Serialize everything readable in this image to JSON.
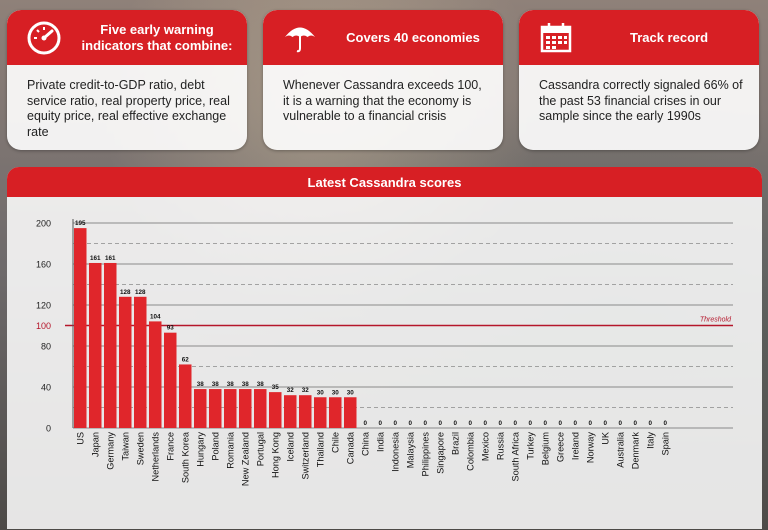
{
  "cards": [
    {
      "title": "Five early warning indicators that combine:",
      "icon": "gauge-icon",
      "body": "Private credit-to-GDP ratio, debt service ratio, real property price, real equity price, real effective exchange rate"
    },
    {
      "title": "Covers 40 economies",
      "icon": "umbrella-icon",
      "body": "Whenever Cassandra exceeds 100, it is a warning that the economy is vulnerable to a financial crisis"
    },
    {
      "title": "Track record",
      "icon": "calendar-icon",
      "body": "Cassandra correctly signaled 66% of the past 53 financial crises in our sample since the early 1990s"
    }
  ],
  "colors": {
    "accent": "#d71f24",
    "bar": "#e0262b",
    "threshold": "#b5162b"
  },
  "chart_data": {
    "type": "bar",
    "title": "Latest Cassandra scores",
    "categories": [
      "US",
      "Japan",
      "Germany",
      "Taiwan",
      "Sweden",
      "Netherlands",
      "France",
      "South Korea",
      "Hungary",
      "Poland",
      "Romania",
      "New Zealand",
      "Portugal",
      "Hong Kong",
      "Iceland",
      "Switzerland",
      "Thailand",
      "Chile",
      "Canada",
      "China",
      "India",
      "Indonesia",
      "Malaysia",
      "Philippines",
      "Singapore",
      "Brazil",
      "Colombia",
      "Mexico",
      "Russia",
      "South Africa",
      "Turkey",
      "Belgium",
      "Greece",
      "Ireland",
      "Norway",
      "UK",
      "Australia",
      "Denmark",
      "Italy",
      "Spain"
    ],
    "values": [
      195,
      161,
      161,
      128,
      128,
      104,
      93,
      62,
      38,
      38,
      38,
      38,
      38,
      35,
      32,
      32,
      30,
      30,
      30,
      0,
      0,
      0,
      0,
      0,
      0,
      0,
      0,
      0,
      0,
      0,
      0,
      0,
      0,
      0,
      0,
      0,
      0,
      0,
      0,
      0
    ],
    "ylim": [
      0,
      200
    ],
    "yticks": [
      0,
      40,
      80,
      100,
      120,
      160,
      200
    ],
    "threshold": {
      "value": 100,
      "label": "Threshold"
    },
    "grid": true
  }
}
